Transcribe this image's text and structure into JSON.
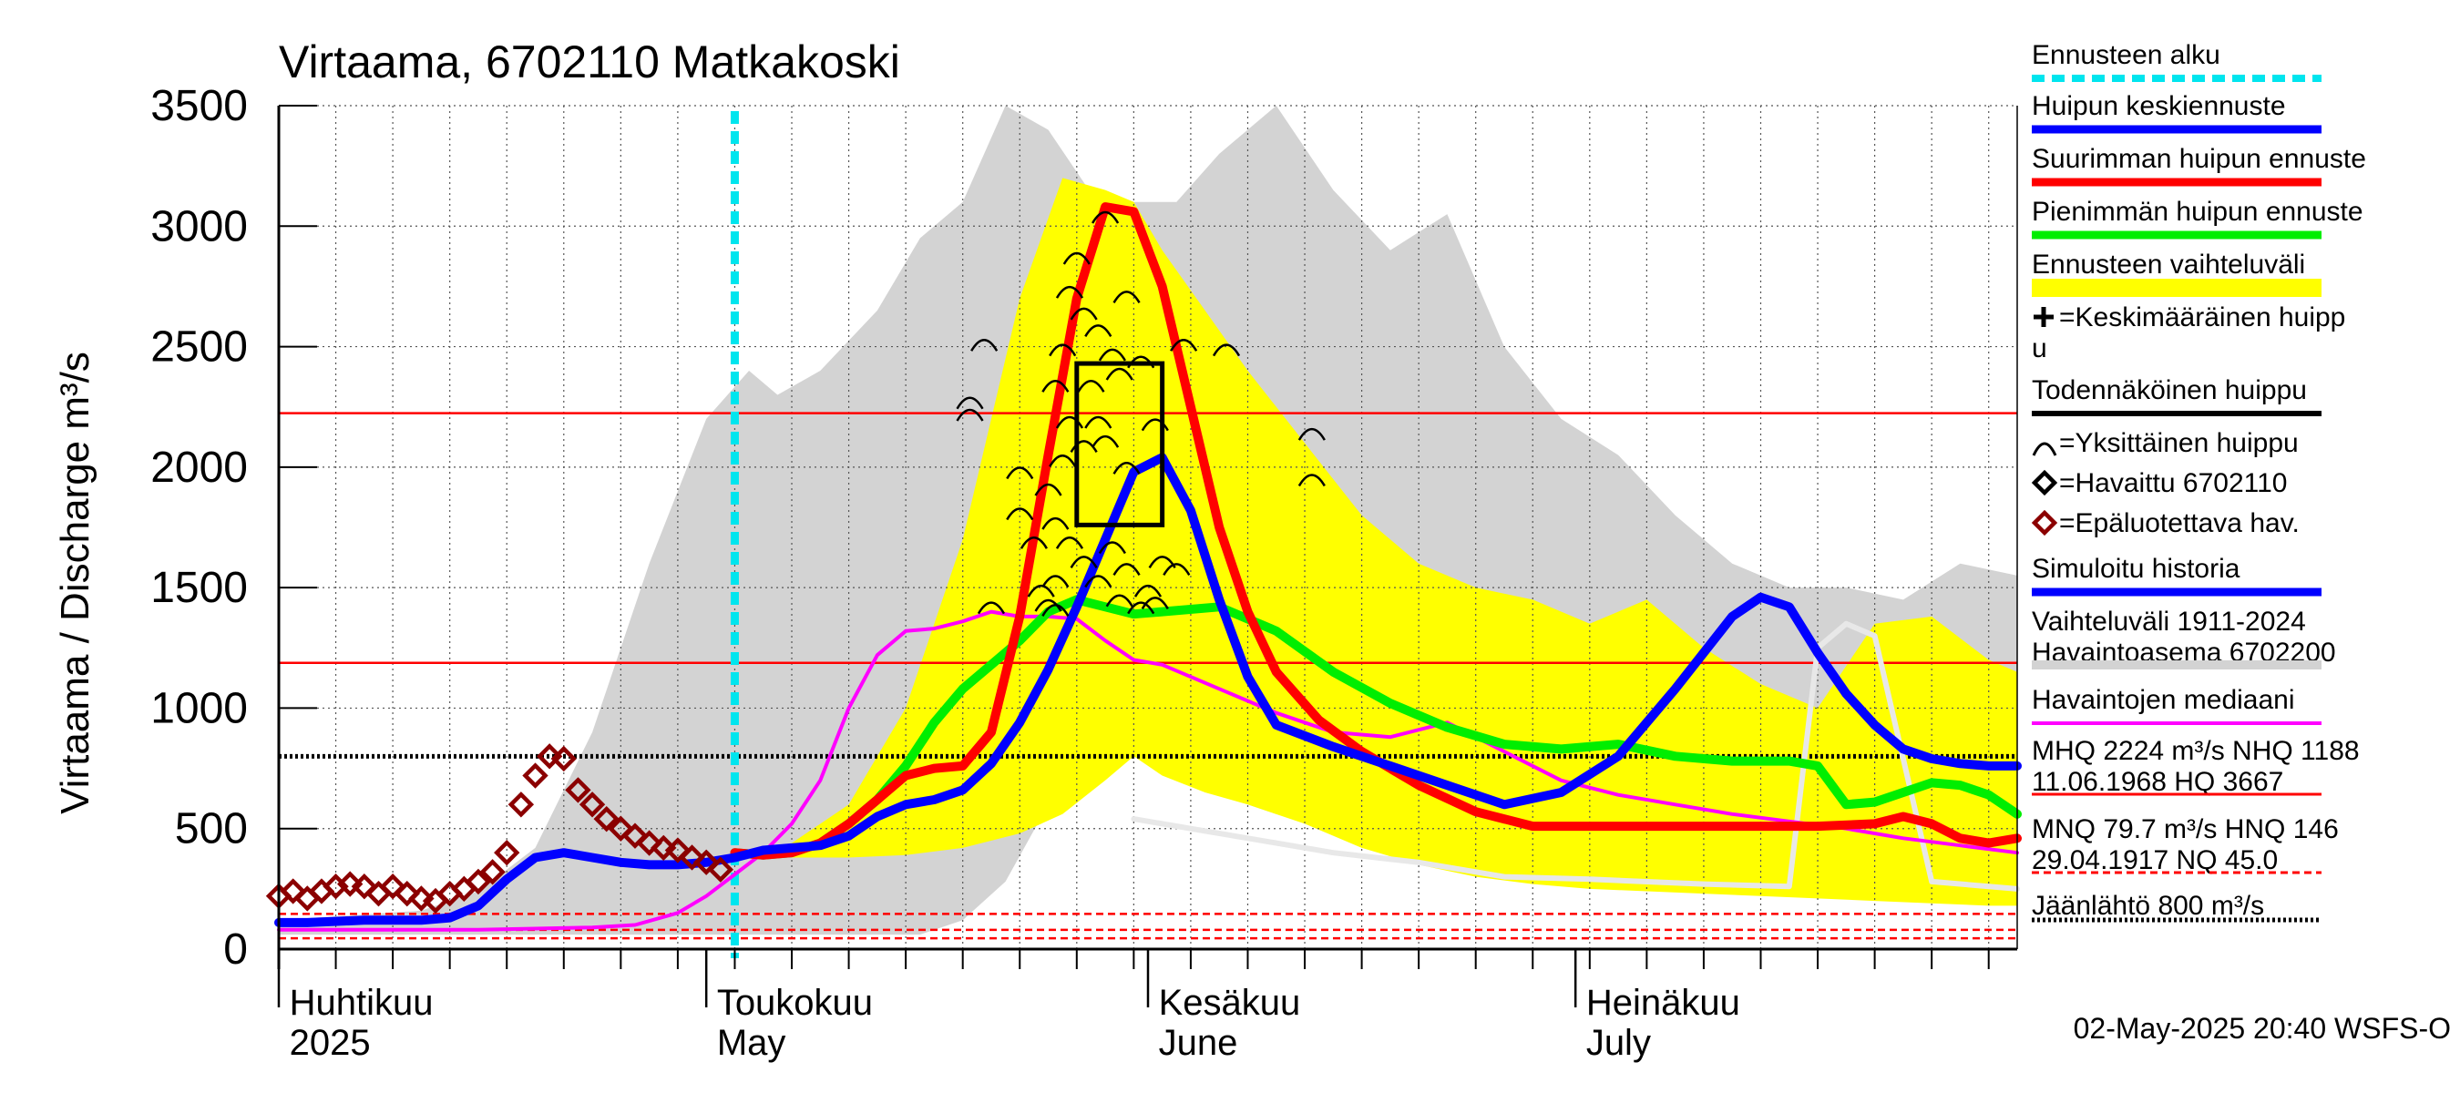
{
  "title": "Virtaama, 6702110 Matkakoski",
  "footer": "02-May-2025 20:40 WSFS-O",
  "colors": {
    "history_band": "#d3d3d3",
    "forecast_band": "#ffff00",
    "forecast_start": "#00e5ee",
    "mean_peak_forecast": "#0000ff",
    "max_peak_forecast": "#ff0000",
    "min_peak_forecast": "#00ee00",
    "median": "#ff00ff",
    "observed": "#8b0000",
    "threshold": "#ff0000",
    "ice": "#000000"
  },
  "legend": [
    {
      "label": "Ennusteen alku",
      "style": "cyan-dash"
    },
    {
      "label": "Huipun keskiennuste",
      "style": "blue"
    },
    {
      "label": "Suurimman huipun ennuste",
      "style": "red"
    },
    {
      "label": "Pienimmän huipun ennuste",
      "style": "green"
    },
    {
      "label": "Ennusteen vaihteluväli",
      "style": "yellow"
    },
    {
      "label": "=Keskimääräinen huipp",
      "label2": "u",
      "style": "plus"
    },
    {
      "label": "Todennäköinen huippu",
      "style": "black"
    },
    {
      "label": "=Yksittäinen huippu",
      "style": "arc"
    },
    {
      "label": "=Havaittu 6702110",
      "style": "diamond-black"
    },
    {
      "label": "=Epäluotettava hav.",
      "style": "diamond-red"
    },
    {
      "label": "Simuloitu historia",
      "style": "blue"
    },
    {
      "label": "Vaihteluväli 1911-2024",
      "label2": " Havaintoasema 6702200",
      "style": "gray"
    },
    {
      "label": "Havaintojen mediaani",
      "style": "magenta"
    },
    {
      "label": "MHQ 2224 m³/s NHQ 1188",
      "label2": "11.06.1968 HQ 3667",
      "style": "red-thin"
    },
    {
      "label": "MNQ 79.7 m³/s HNQ  146",
      "label2": "29.04.1917 NQ 45.0",
      "style": "red-dash"
    },
    {
      "label": "Jäänlähtö 800 m³/s",
      "style": "black-dot"
    }
  ],
  "chart_data": {
    "type": "line",
    "ylabel": "Virtaama / Discharge   m³/s",
    "y_ticks": [
      "0",
      "500",
      "1000",
      "1500",
      "2000",
      "2500",
      "3000",
      "3500"
    ],
    "ylim": [
      0,
      3500
    ],
    "x_unit": "day of year 2025",
    "xlim": [
      90,
      212
    ],
    "x_month_labels": [
      {
        "day": 91,
        "fi": "Huhtikuu",
        "en": "2025"
      },
      {
        "day": 121,
        "fi": "Toukokuu",
        "en": "May"
      },
      {
        "day": 152,
        "fi": "Kesäkuu",
        "en": "June"
      },
      {
        "day": 182,
        "fi": "Heinäkuu",
        "en": "July"
      }
    ],
    "forecast_start_day": 122,
    "reference_lines": {
      "MHQ": 2224,
      "NHQ": 1188,
      "HQ": 3667,
      "MNQ": 79.7,
      "HNQ": 146,
      "NQ": 45.0,
      "ice_breakup": 800
    },
    "probable_peak_box": {
      "day_from": 146,
      "day_to": 152,
      "q_from": 1760,
      "q_to": 2430
    },
    "history_band": {
      "x": [
        90,
        100,
        104,
        108,
        112,
        116,
        120,
        123,
        125,
        128,
        132,
        135,
        138,
        141,
        144,
        148,
        150,
        153,
        156,
        160,
        164,
        168,
        172,
        176,
        180,
        184,
        188,
        192,
        196,
        200,
        204,
        208,
        212
      ],
      "upper": [
        120,
        160,
        240,
        420,
        900,
        1600,
        2200,
        2400,
        2300,
        2400,
        2650,
        2950,
        3100,
        3500,
        3400,
        3050,
        3100,
        3100,
        3300,
        3500,
        3150,
        2900,
        3050,
        2500,
        2200,
        2050,
        1800,
        1600,
        1500,
        1500,
        1450,
        1600,
        1550
      ],
      "lower": [
        60,
        60,
        60,
        60,
        60,
        60,
        60,
        60,
        60,
        60,
        60,
        60,
        120,
        280,
        600,
        900,
        1050,
        850,
        640,
        560,
        520,
        460,
        420,
        400,
        380,
        360,
        340,
        320,
        300,
        280,
        260,
        250,
        240
      ]
    },
    "forecast_band": {
      "x": [
        122,
        126,
        130,
        134,
        138,
        142,
        145,
        148,
        150,
        152,
        155,
        158,
        162,
        166,
        170,
        174,
        178,
        182,
        186,
        190,
        194,
        198,
        202,
        206,
        210,
        212
      ],
      "upper": [
        400,
        440,
        600,
        1000,
        1700,
        2700,
        3200,
        3150,
        3100,
        2900,
        2650,
        2400,
        2100,
        1800,
        1600,
        1500,
        1450,
        1350,
        1450,
        1250,
        1100,
        1000,
        1350,
        1380,
        1200,
        1150
      ],
      "lower": [
        400,
        380,
        380,
        390,
        420,
        480,
        560,
        700,
        800,
        720,
        650,
        600,
        520,
        420,
        350,
        300,
        270,
        250,
        240,
        230,
        220,
        210,
        200,
        190,
        180,
        180
      ]
    },
    "series": [
      {
        "name": "Epäluotettava hav.",
        "kind": "diamond",
        "x": [
          90,
          91,
          92,
          93,
          94,
          95,
          96,
          97,
          98,
          99,
          100,
          101,
          102,
          103,
          104,
          105,
          106,
          107,
          108,
          109,
          110,
          111,
          112,
          113,
          114,
          115,
          116,
          117,
          118,
          119,
          120,
          121
        ],
        "y": [
          220,
          240,
          210,
          240,
          260,
          270,
          260,
          230,
          260,
          230,
          210,
          200,
          230,
          250,
          280,
          320,
          400,
          600,
          720,
          800,
          790,
          660,
          600,
          540,
          500,
          470,
          440,
          420,
          410,
          380,
          360,
          330
        ]
      },
      {
        "name": "Huipun keskiennuste",
        "kind": "line",
        "x": [
          90,
          92,
          96,
          100,
          102,
          104,
          106,
          108,
          110,
          112,
          114,
          116,
          118,
          120,
          122,
          124,
          126,
          128,
          130,
          132,
          134,
          136,
          138,
          140,
          142,
          144,
          146,
          148,
          150,
          152,
          154,
          156,
          158,
          160,
          164,
          168,
          172,
          176,
          180,
          184,
          188,
          192,
          194,
          196,
          198,
          200,
          202,
          204,
          206,
          208,
          210,
          212
        ],
        "y": [
          110,
          110,
          120,
          120,
          130,
          180,
          290,
          380,
          400,
          380,
          360,
          350,
          350,
          360,
          380,
          410,
          420,
          430,
          470,
          550,
          600,
          620,
          660,
          770,
          940,
          1160,
          1420,
          1700,
          1980,
          2040,
          1820,
          1450,
          1130,
          930,
          840,
          760,
          680,
          600,
          650,
          800,
          1080,
          1380,
          1460,
          1420,
          1230,
          1060,
          930,
          830,
          790,
          770,
          760,
          760
        ]
      },
      {
        "name": "Suurimman huipun ennuste",
        "kind": "line",
        "x": [
          122,
          124,
          126,
          128,
          130,
          132,
          134,
          136,
          138,
          140,
          142,
          144,
          146,
          148,
          150,
          152,
          154,
          156,
          158,
          160,
          163,
          166,
          170,
          174,
          178,
          182,
          186,
          190,
          194,
          198,
          202,
          204,
          206,
          208,
          210,
          212
        ],
        "y": [
          400,
          390,
          400,
          440,
          520,
          620,
          720,
          750,
          760,
          900,
          1380,
          2050,
          2700,
          3080,
          3060,
          2750,
          2250,
          1750,
          1400,
          1150,
          950,
          820,
          680,
          570,
          510,
          510,
          510,
          510,
          510,
          510,
          520,
          550,
          520,
          460,
          440,
          460
        ]
      },
      {
        "name": "Pienimmän huipun ennuste",
        "kind": "line",
        "x": [
          122,
          124,
          126,
          128,
          130,
          132,
          134,
          136,
          138,
          140,
          142,
          144,
          146,
          148,
          150,
          152,
          156,
          160,
          164,
          168,
          172,
          176,
          180,
          184,
          188,
          192,
          196,
          198,
          200,
          202,
          204,
          206,
          208,
          210,
          212
        ],
        "y": [
          400,
          390,
          400,
          440,
          520,
          620,
          760,
          940,
          1080,
          1180,
          1280,
          1400,
          1450,
          1420,
          1390,
          1400,
          1420,
          1320,
          1150,
          1020,
          920,
          850,
          830,
          850,
          800,
          780,
          780,
          760,
          600,
          610,
          650,
          690,
          680,
          640,
          560
        ]
      },
      {
        "name": "Havaintojen mediaani",
        "kind": "line",
        "x": [
          90,
          96,
          100,
          104,
          108,
          112,
          115,
          118,
          120,
          122,
          124,
          126,
          128,
          130,
          132,
          134,
          136,
          138,
          140,
          142,
          144,
          146,
          148,
          150,
          152,
          156,
          160,
          164,
          168,
          172,
          176,
          180,
          184,
          188,
          192,
          196,
          200,
          204,
          208,
          212
        ],
        "y": [
          80,
          80,
          80,
          80,
          85,
          90,
          100,
          150,
          220,
          310,
          400,
          520,
          700,
          1000,
          1220,
          1320,
          1330,
          1360,
          1400,
          1380,
          1380,
          1370,
          1280,
          1200,
          1180,
          1080,
          980,
          900,
          880,
          940,
          820,
          700,
          640,
          600,
          560,
          530,
          500,
          460,
          430,
          400
        ]
      },
      {
        "name": "Simuloitu historia (gray)",
        "kind": "line",
        "x": [
          150,
          160,
          164,
          170,
          176,
          182,
          190,
          196,
          198,
          200,
          202,
          206,
          212
        ],
        "y": [
          540,
          440,
          400,
          360,
          300,
          290,
          270,
          260,
          1250,
          1350,
          1300,
          280,
          250
        ]
      }
    ],
    "single_peaks": [
      {
        "day": 139.5,
        "q": 2520
      },
      {
        "day": 146,
        "q": 2880
      },
      {
        "day": 148,
        "q": 3050
      },
      {
        "day": 145.5,
        "q": 2740
      },
      {
        "day": 146.5,
        "q": 2650
      },
      {
        "day": 147.5,
        "q": 2580
      },
      {
        "day": 149.5,
        "q": 2720
      },
      {
        "day": 145,
        "q": 2500
      },
      {
        "day": 148.5,
        "q": 2480
      },
      {
        "day": 150.5,
        "q": 2450
      },
      {
        "day": 144.5,
        "q": 2350
      },
      {
        "day": 147,
        "q": 2350
      },
      {
        "day": 149,
        "q": 2400
      },
      {
        "day": 145.5,
        "q": 2200
      },
      {
        "day": 147.5,
        "q": 2200
      },
      {
        "day": 138.5,
        "q": 2230
      },
      {
        "day": 138.5,
        "q": 2280
      },
      {
        "day": 151.5,
        "q": 2190
      },
      {
        "day": 148,
        "q": 2120
      },
      {
        "day": 146.5,
        "q": 2100
      },
      {
        "day": 145,
        "q": 2040
      },
      {
        "day": 149.5,
        "q": 2010
      },
      {
        "day": 142,
        "q": 1990
      },
      {
        "day": 144,
        "q": 1920
      },
      {
        "day": 142,
        "q": 1820
      },
      {
        "day": 144.5,
        "q": 1780
      },
      {
        "day": 143,
        "q": 1700
      },
      {
        "day": 145.5,
        "q": 1700
      },
      {
        "day": 148.5,
        "q": 1680
      },
      {
        "day": 146.5,
        "q": 1620
      },
      {
        "day": 149.5,
        "q": 1590
      },
      {
        "day": 144.5,
        "q": 1540
      },
      {
        "day": 147.5,
        "q": 1540
      },
      {
        "day": 143.5,
        "q": 1500
      },
      {
        "day": 149,
        "q": 1460
      },
      {
        "day": 140,
        "q": 1430
      },
      {
        "day": 144.5,
        "q": 1420
      },
      {
        "day": 144,
        "q": 1440
      },
      {
        "day": 151.5,
        "q": 1450
      },
      {
        "day": 153,
        "q": 1590
      },
      {
        "day": 152,
        "q": 1620
      },
      {
        "day": 151,
        "q": 1500
      },
      {
        "day": 153.5,
        "q": 2520
      },
      {
        "day": 156.5,
        "q": 2500
      },
      {
        "day": 162.5,
        "q": 2150
      },
      {
        "day": 162.5,
        "q": 1960
      },
      {
        "day": 150.5,
        "q": 1430
      }
    ]
  }
}
